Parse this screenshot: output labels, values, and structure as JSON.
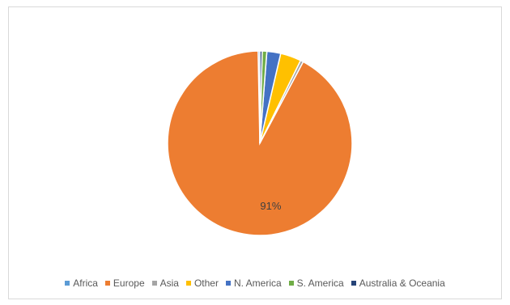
{
  "chart_data": {
    "type": "pie",
    "title": "",
    "categories": [
      "Africa",
      "Europe",
      "Asia",
      "Other",
      "N. America",
      "S. America",
      "Australia & Oceania"
    ],
    "values": [
      0.3,
      91.0,
      0.5,
      3.6,
      2.4,
      0.8,
      0.4
    ],
    "data_labels": [
      {
        "category": "Europe",
        "text": "91%"
      }
    ],
    "colors": [
      "#5b9bd5",
      "#ed7d31",
      "#a5a5a5",
      "#ffc000",
      "#4472c4",
      "#70ad47",
      "#264478"
    ],
    "start_angle_deg": 0,
    "direction": "counterclockwise",
    "legend_position": "bottom"
  }
}
